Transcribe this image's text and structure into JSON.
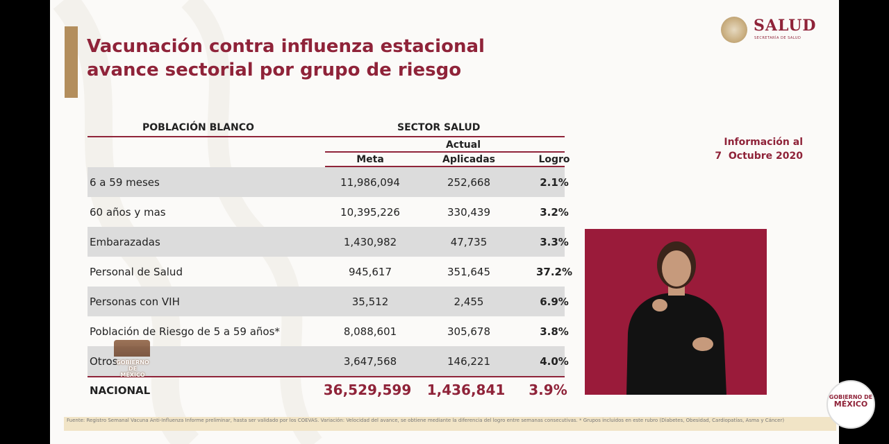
{
  "title_line1": "Vacunación contra influenza estacional",
  "title_line2": "avance sectorial por grupo de riesgo",
  "logo": {
    "word": "SALUD",
    "sub": "SECRETARÍA DE SALUD"
  },
  "info": {
    "line1": "Información al",
    "line2": "7  Octubre 2020"
  },
  "table": {
    "col_poblacion": "POBLACIÓN BLANCO",
    "col_sector": "SECTOR SALUD",
    "col_actual": "Actual",
    "col_meta": "Meta",
    "col_aplicadas": "Aplicadas",
    "col_logro": "Logro",
    "rows": [
      {
        "label": "6 a 59 meses",
        "meta": "11,986,094",
        "aplicadas": "252,668",
        "logro": "2.1%"
      },
      {
        "label": "60 años y mas",
        "meta": "10,395,226",
        "aplicadas": "330,439",
        "logro": "3.2%"
      },
      {
        "label": "Embarazadas",
        "meta": "1,430,982",
        "aplicadas": "47,735",
        "logro": "3.3%"
      },
      {
        "label": "Personal de Salud",
        "meta": "945,617",
        "aplicadas": "351,645",
        "logro": "37.2%"
      },
      {
        "label": "Personas con VIH",
        "meta": "35,512",
        "aplicadas": "2,455",
        "logro": "6.9%"
      },
      {
        "label": "Población de Riesgo de 5 a 59 años*",
        "meta": "8,088,601",
        "aplicadas": "305,678",
        "logro": "3.8%"
      },
      {
        "label": "Otros",
        "meta": "3,647,568",
        "aplicadas": "146,221",
        "logro": "4.0%"
      }
    ],
    "total": {
      "label": "NACIONAL",
      "meta": "36,529,599",
      "aplicadas": "1,436,841",
      "logro": "3.9%"
    }
  },
  "footer": {
    "text": "Fuente: Registro Semanal Vacuna Anti-Influenza Informe preliminar, hasta ser validado por los COEVAS. Variación: Velocidad del avance, se obtiene mediante la diferencia del logro entre semanas consecutivas.  * Grupos incluidos en este rubro (Diabetes, Obesidad, Cardiopatías, Asma y Cáncer)"
  },
  "overlay_gobierno": {
    "line1": "GOBIERNO DE",
    "line2": "MÉXICO"
  },
  "badge": {
    "line1": "GOBIERNO DE",
    "line2": "MÉXICO"
  },
  "colors": {
    "brand": "#8f2339",
    "gold": "#b38e5d",
    "row_shade": "#dcdcdc",
    "interpreter_bg": "#9a1b3a"
  }
}
